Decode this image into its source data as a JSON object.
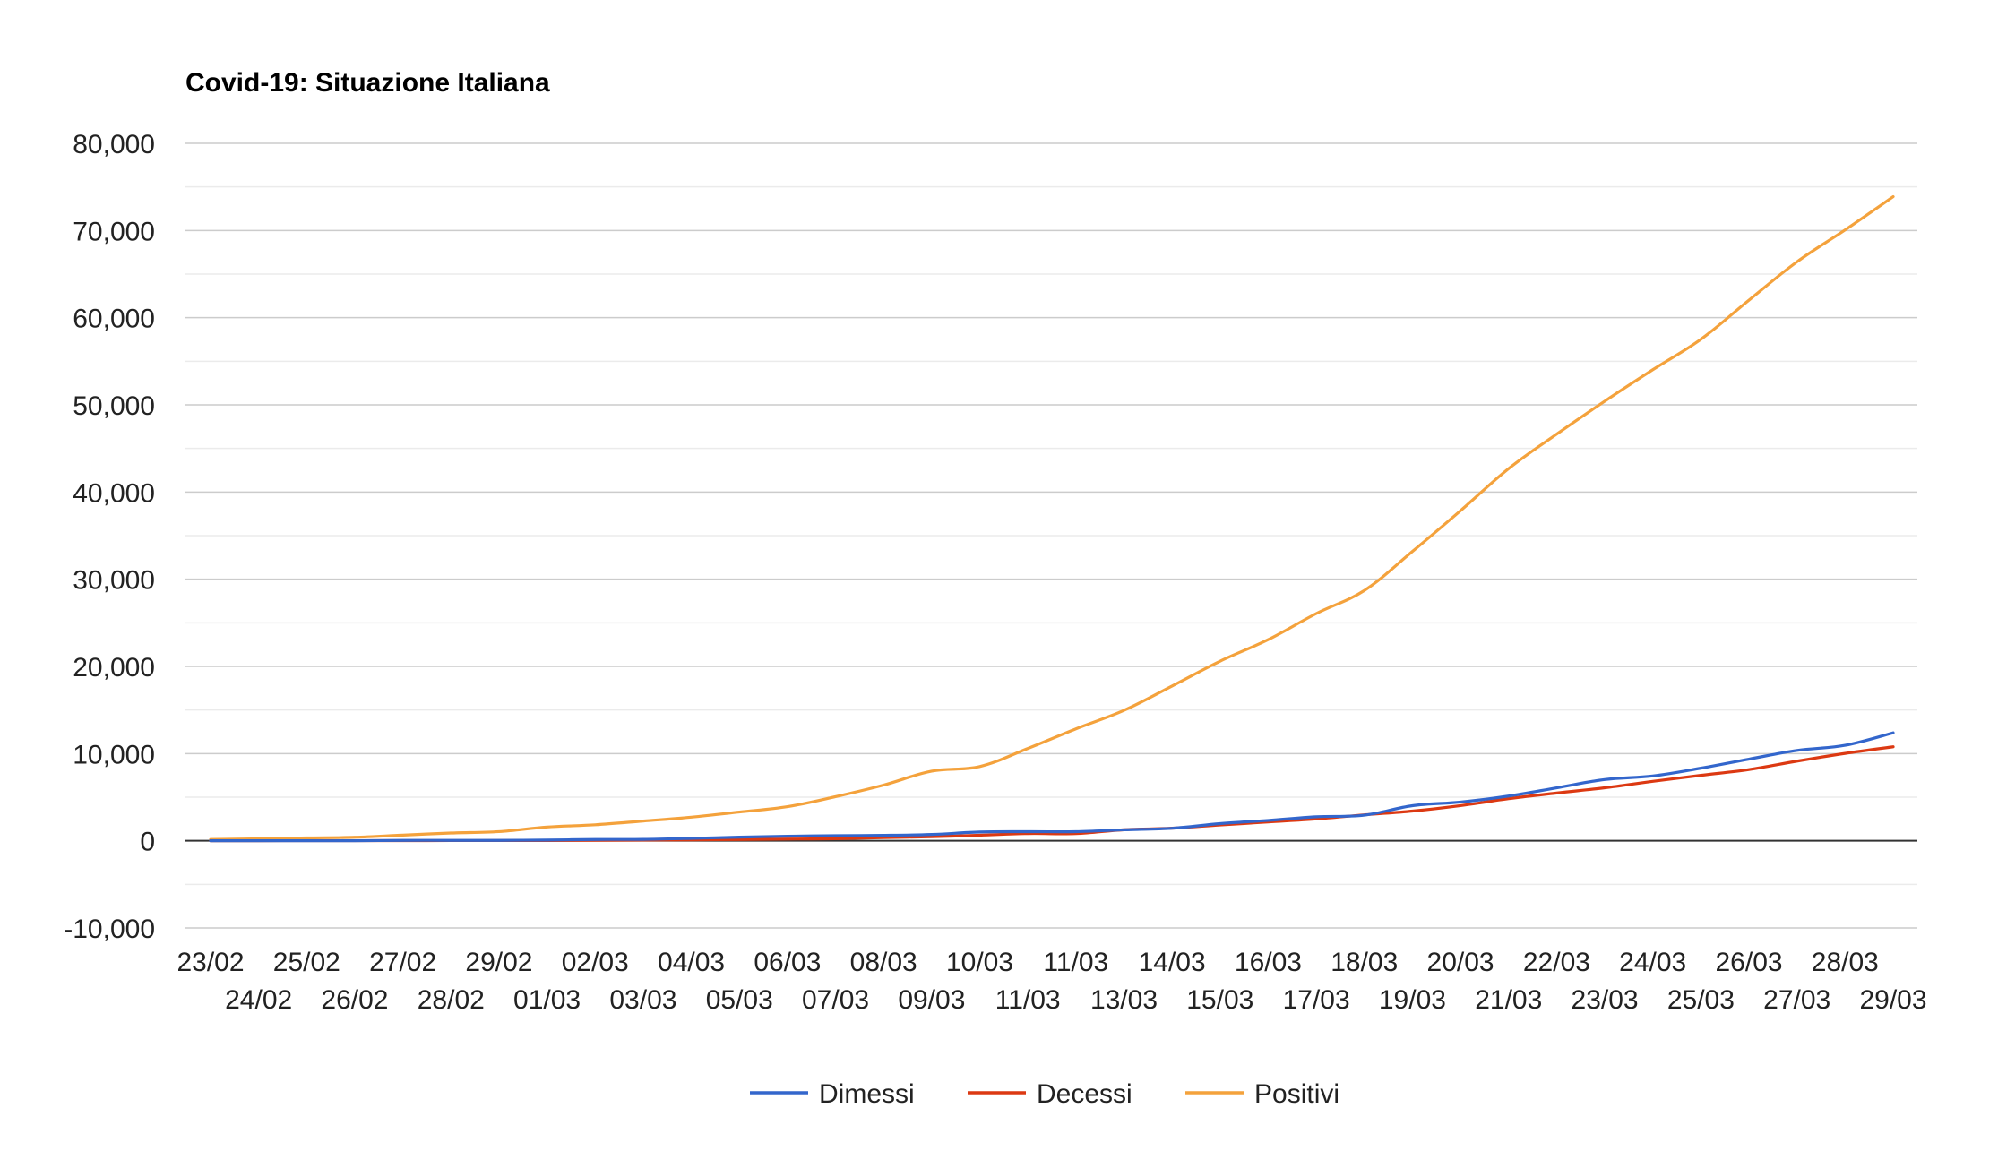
{
  "chart_data": {
    "type": "line",
    "title": "Covid-19: Situazione Italiana",
    "xlabel": "",
    "ylabel": "",
    "ylim": [
      -10000,
      80000
    ],
    "yticks": [
      -10000,
      0,
      10000,
      20000,
      30000,
      40000,
      50000,
      60000,
      70000,
      80000
    ],
    "ytick_labels": [
      "-10,000",
      "0",
      "10,000",
      "20,000",
      "30,000",
      "40,000",
      "50,000",
      "60,000",
      "70,000",
      "80,000"
    ],
    "grid": true,
    "legend_position": "bottom",
    "categories": [
      "23/02",
      "24/02",
      "25/02",
      "26/02",
      "27/02",
      "28/02",
      "29/02",
      "01/03",
      "02/03",
      "03/03",
      "04/03",
      "05/03",
      "06/03",
      "07/03",
      "08/03",
      "09/03",
      "10/03",
      "11/03",
      "11/03",
      "13/03",
      "14/03",
      "15/03",
      "16/03",
      "17/03",
      "18/03",
      "19/03",
      "20/03",
      "21/03",
      "22/03",
      "23/03",
      "24/03",
      "25/03",
      "26/03",
      "27/03",
      "28/03",
      "29/03"
    ],
    "series": [
      {
        "name": "Dimessi",
        "color": "#3366cc",
        "values": [
          1,
          1,
          1,
          3,
          45,
          46,
          46,
          83,
          149,
          160,
          276,
          414,
          523,
          589,
          622,
          724,
          1004,
          1045,
          1045,
          1258,
          1439,
          1966,
          2335,
          2749,
          2941,
          4025,
          4440,
          5129,
          6072,
          7024,
          7432,
          8326,
          9362,
          10361,
          10950,
          12384
        ]
      },
      {
        "name": "Decessi",
        "color": "#dc3912",
        "values": [
          3,
          7,
          10,
          12,
          17,
          21,
          29,
          34,
          52,
          79,
          107,
          148,
          197,
          233,
          366,
          463,
          631,
          827,
          827,
          1266,
          1441,
          1809,
          2158,
          2503,
          2978,
          3405,
          4032,
          4825,
          5476,
          6077,
          6820,
          7503,
          8165,
          9134,
          10023,
          10779
        ]
      },
      {
        "name": "Positivi",
        "color": "#f4a23c",
        "values": [
          152,
          229,
          322,
          400,
          650,
          888,
          1049,
          1577,
          1835,
          2263,
          2706,
          3296,
          3916,
          5061,
          6387,
          7985,
          8514,
          10590,
          12839,
          14955,
          17750,
          20603,
          23073,
          26062,
          28710,
          33190,
          37860,
          42681,
          46638,
          50418,
          54030,
          57521,
          62013,
          66414,
          70065,
          73880
        ]
      }
    ]
  }
}
